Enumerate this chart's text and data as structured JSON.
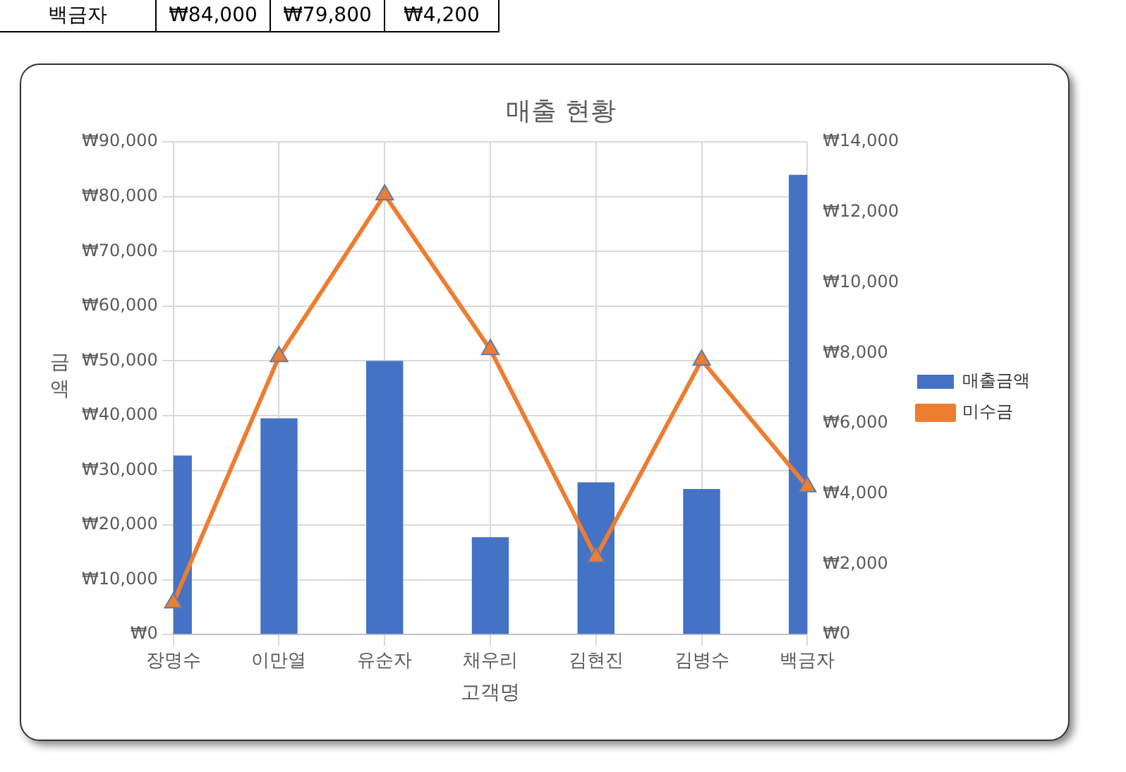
{
  "chart_data": {
    "type": "bar",
    "title": "매출 현황",
    "xlabel": "고객명",
    "ylabel": "금액",
    "annotations": [
      "백금자",
      "₩84,000",
      "₩79,800",
      "₩4,200"
    ],
    "categories": [
      "장명수",
      "이만열",
      "유순자",
      "채우리",
      "김현진",
      "김병수",
      "백금자"
    ],
    "series": [
      {
        "name": "매출금액",
        "color": "#4472c4",
        "values": [
          32700,
          39500,
          50000,
          17800,
          27800,
          26600,
          84000
        ]
      },
      {
        "name": "미수금",
        "type": "line",
        "axis": "y2",
        "color": "#ed7d31",
        "values": [
          900,
          7900,
          12500,
          8100,
          2200,
          7800,
          4200
        ]
      }
    ],
    "ylim": [
      0,
      90000
    ],
    "yticks": [
      {
        "value": 0,
        "label": "₩0"
      },
      {
        "value": 10000,
        "label": "₩10,000"
      },
      {
        "value": 20000,
        "label": "₩20,000"
      },
      {
        "value": 30000,
        "label": "₩30,000"
      },
      {
        "value": 40000,
        "label": "₩40,000"
      },
      {
        "value": 50000,
        "label": "₩50,000"
      },
      {
        "value": 60000,
        "label": "₩60,000"
      },
      {
        "value": 70000,
        "label": "₩70,000"
      },
      {
        "value": 80000,
        "label": "₩80,000"
      },
      {
        "value": 90000,
        "label": "₩90,000"
      }
    ],
    "y2lim": [
      0,
      14000
    ],
    "y2ticks": [
      {
        "value": 0,
        "label": "₩0"
      },
      {
        "value": 2000,
        "label": "₩2,000"
      },
      {
        "value": 4000,
        "label": "₩4,000"
      },
      {
        "value": 6000,
        "label": "₩6,000"
      },
      {
        "value": 8000,
        "label": "₩8,000"
      },
      {
        "value": 10000,
        "label": "₩10,000"
      },
      {
        "value": 12000,
        "label": "₩12,000"
      },
      {
        "value": 14000,
        "label": "₩14,000"
      }
    ],
    "grid": true,
    "legend": "right",
    "marker": "triangle",
    "line_style": "solid"
  }
}
